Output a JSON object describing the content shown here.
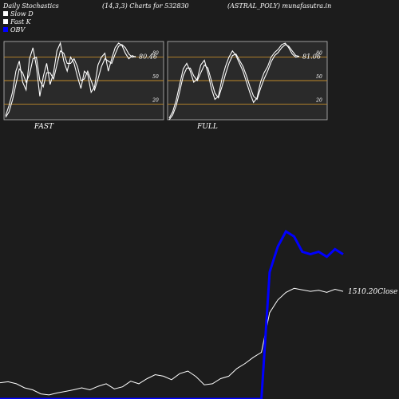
{
  "header": {
    "title": "Daily Stochastics",
    "params": "(14,3,3) Charts for 532830",
    "symbol": "(ASTRAL_POLY) munafasutra.in"
  },
  "legend": [
    {
      "label": "Slow  D",
      "swatch": "#ffffff"
    },
    {
      "label": "Fast K",
      "swatch": "#ffffff"
    },
    {
      "label": "OBV",
      "swatch": "#0000ff"
    }
  ],
  "colors": {
    "background": "#1c1c1c",
    "panel_bg": "#2a2a2a",
    "level_line": "#c08a2a",
    "obv": "#0000ff",
    "price": "#ffffff"
  },
  "chart_data": [
    {
      "type": "line",
      "title": "FAST",
      "ylim": [
        0,
        100
      ],
      "yticks": [
        "80",
        "50",
        "20"
      ],
      "levels": [
        80,
        50,
        20
      ],
      "last_value_label": "80.46",
      "series": [
        {
          "values": [
            5,
            18,
            35,
            62,
            75,
            48,
            38,
            78,
            92,
            68,
            30,
            55,
            72,
            45,
            60,
            88,
            98,
            75,
            62,
            80,
            72,
            55,
            40,
            62,
            58,
            35,
            42,
            70,
            80,
            85,
            62,
            78,
            92,
            98,
            95,
            85,
            78,
            82,
            80
          ]
        },
        {
          "values": [
            3,
            10,
            25,
            45,
            65,
            60,
            48,
            58,
            78,
            80,
            50,
            42,
            60,
            60,
            52,
            70,
            88,
            85,
            72,
            72,
            78,
            68,
            50,
            52,
            62,
            50,
            38,
            52,
            68,
            78,
            75,
            72,
            84,
            94,
            96,
            92,
            84,
            80,
            81
          ]
        }
      ]
    },
    {
      "type": "line",
      "title": "FULL",
      "ylim": [
        0,
        100
      ],
      "yticks": [
        "80",
        "50",
        "20"
      ],
      "levels": [
        80,
        50,
        20
      ],
      "last_value_label": "81.06",
      "series": [
        {
          "values": [
            2,
            10,
            25,
            45,
            65,
            72,
            62,
            48,
            52,
            70,
            76,
            60,
            40,
            26,
            30,
            52,
            68,
            80,
            88,
            82,
            72,
            62,
            48,
            34,
            22,
            28,
            48,
            60,
            68,
            80,
            86,
            90,
            96,
            98,
            92,
            84,
            80,
            81
          ]
        },
        {
          "values": [
            0,
            6,
            18,
            36,
            56,
            66,
            66,
            56,
            50,
            60,
            70,
            66,
            50,
            34,
            28,
            42,
            58,
            72,
            82,
            84,
            76,
            68,
            56,
            42,
            30,
            26,
            40,
            52,
            62,
            74,
            82,
            86,
            92,
            96,
            94,
            88,
            82,
            81
          ]
        }
      ]
    },
    {
      "type": "line",
      "last_value_label": "1510.20Close",
      "series": [
        {
          "name": "Close",
          "values": [
            32,
            34,
            30,
            22,
            18,
            10,
            8,
            12,
            15,
            18,
            22,
            18,
            25,
            30,
            20,
            24,
            35,
            30,
            40,
            48,
            45,
            38,
            50,
            55,
            44,
            28,
            30,
            40,
            45,
            60,
            70,
            82,
            92,
            170,
            195,
            210,
            218,
            215,
            212,
            214,
            210,
            216,
            212
          ]
        },
        {
          "name": "OBV",
          "values": [
            0,
            0,
            0,
            0,
            0,
            0,
            0,
            0,
            0,
            0,
            0,
            0,
            0,
            0,
            0,
            0,
            0,
            0,
            0,
            0,
            0,
            0,
            0,
            0,
            0,
            0,
            0,
            0,
            0,
            0,
            0,
            0,
            0,
            250,
            300,
            330,
            320,
            290,
            285,
            290,
            280,
            295,
            285
          ]
        }
      ]
    }
  ]
}
